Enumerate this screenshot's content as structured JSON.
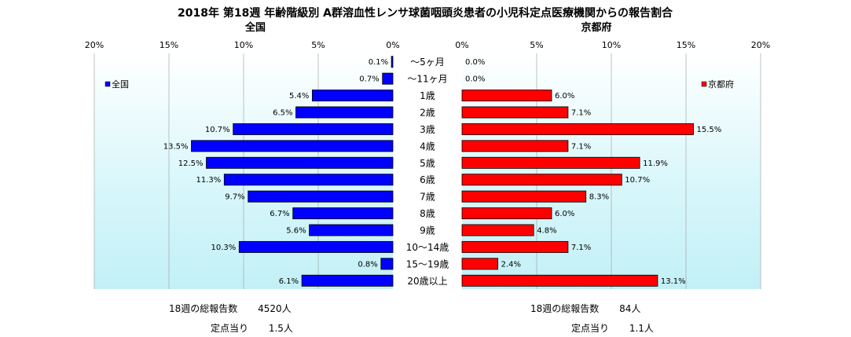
{
  "chart_data": {
    "type": "bar",
    "title": "2018年 第18週 年齢階級別 A群溶血性レンサ球菌咽頭炎患者の小児科定点医療機関からの報告割合",
    "categories": [
      "～5ヶ月",
      "～11ヶ月",
      "1歳",
      "2歳",
      "3歳",
      "4歳",
      "5歳",
      "6歳",
      "7歳",
      "8歳",
      "9歳",
      "10～14歳",
      "15～19歳",
      "20歳以上"
    ],
    "xlim": [
      0,
      20
    ],
    "ticks": [
      "0%",
      "5%",
      "10%",
      "15%",
      "20%"
    ],
    "grid": true,
    "series": [
      {
        "name": "全国",
        "panel_title": "全国",
        "color": "#0000ff",
        "direction": "left",
        "legend_position": "left",
        "values": [
          0.1,
          0.7,
          5.4,
          6.5,
          10.7,
          13.5,
          12.5,
          11.3,
          9.7,
          6.7,
          5.6,
          10.3,
          0.8,
          6.1
        ],
        "value_labels": [
          "0.1%",
          "0.7%",
          "5.4%",
          "6.5%",
          "10.7%",
          "13.5%",
          "12.5%",
          "11.3%",
          "9.7%",
          "6.7%",
          "5.6%",
          "10.3%",
          "0.8%",
          "6.1%"
        ]
      },
      {
        "name": "京都府",
        "panel_title": "京都府",
        "color": "#ff0000",
        "direction": "right",
        "legend_position": "right",
        "values": [
          0.0,
          0.0,
          6.0,
          7.1,
          15.5,
          7.1,
          11.9,
          10.7,
          8.3,
          6.0,
          4.8,
          7.1,
          2.4,
          13.1
        ],
        "value_labels": [
          "0.0%",
          "0.0%",
          "6.0%",
          "7.1%",
          "15.5%",
          "7.1%",
          "11.9%",
          "10.7%",
          "8.3%",
          "6.0%",
          "4.8%",
          "7.1%",
          "2.4%",
          "13.1%"
        ]
      }
    ]
  },
  "footer": {
    "left": {
      "total_label": "18週の総報告数",
      "total_value": "4520人",
      "per_label": "定点当り",
      "per_value": "1.5人"
    },
    "right": {
      "total_label": "18週の総報告数",
      "total_value": "84人",
      "per_label": "定点当り",
      "per_value": "1.1人"
    }
  }
}
